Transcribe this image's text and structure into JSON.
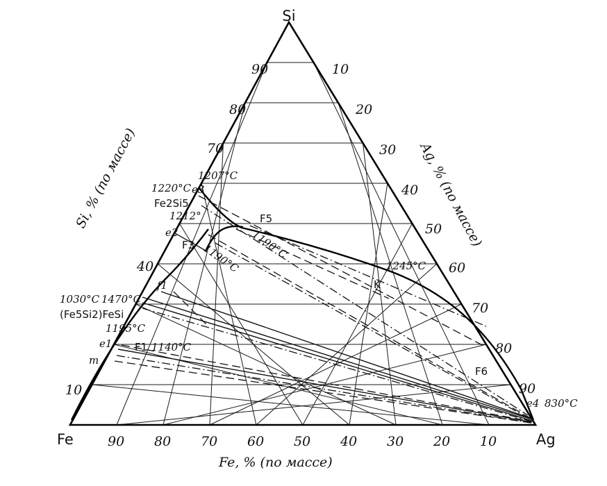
{
  "corners": {
    "top": "Si",
    "left": "Fe",
    "right": "Ag"
  },
  "axis_titles": {
    "left": "Si, % (по массе)",
    "right": "Ag, % (по массе)",
    "bottom": "Fe, % (по массе)"
  },
  "ticks": {
    "left": [
      "10",
      "40",
      "70",
      "80",
      "90"
    ],
    "right": [
      "10",
      "20",
      "30",
      "40",
      "50",
      "60",
      "70",
      "80",
      "90"
    ],
    "bottom": [
      "90",
      "80",
      "70",
      "60",
      "50",
      "40",
      "30",
      "20",
      "10"
    ]
  },
  "annotations": {
    "t1207": "1207°C",
    "t1220": "1220°C",
    "e3": "e3",
    "fe2si5": "Fe2Si5",
    "t1212": "1212°",
    "e2": "e2",
    "f3": "F3",
    "f5": "F5",
    "t1190a": "1190°C",
    "t1190b": "1190°C",
    "t1245": "1245°C",
    "k": "K",
    "f1_small": "f1",
    "t1030": "1030°C",
    "t1470": "1470°C",
    "fe5si2": "(Fe5Si2)FeSi",
    "t1195": "1195°C",
    "e1": "e1",
    "F1": "F1",
    "t1140": "1140°C",
    "m": "m",
    "F6": "F6",
    "e4": "e4",
    "t830": "830°C"
  }
}
